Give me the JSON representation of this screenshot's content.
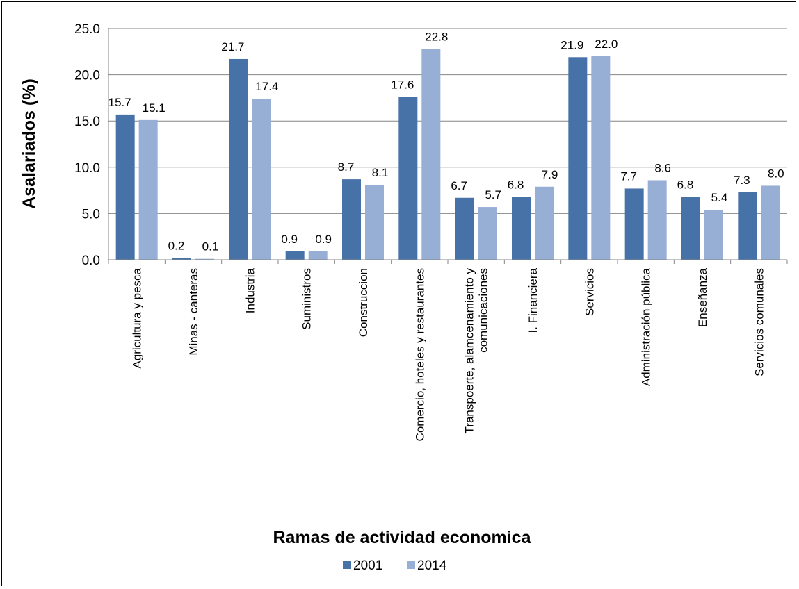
{
  "chart_data": {
    "type": "bar",
    "title": "",
    "xlabel": "Ramas de actividad economica",
    "ylabel": "Asalariados (%)",
    "ylim": [
      0,
      25
    ],
    "yticks": [
      "0.0",
      "5.0",
      "10.0",
      "15.0",
      "20.0",
      "25.0"
    ],
    "grid": true,
    "legend_position": "bottom",
    "categories": [
      [
        "Agricultura y pesca"
      ],
      [
        "Minas - canteras"
      ],
      [
        "Industria"
      ],
      [
        "Suministros"
      ],
      [
        "Construccion"
      ],
      [
        "Comercio, hoteles y restaurantes"
      ],
      [
        "Transpoerte, alamcenamiento y",
        "comunicaciones"
      ],
      [
        "I. Financiera"
      ],
      [
        "Servicios"
      ],
      [
        "Administración pública"
      ],
      [
        "Enseñanza"
      ],
      [
        "Servicios comunales"
      ]
    ],
    "series": [
      {
        "name": "2001",
        "color": "#4672A8",
        "values": [
          15.7,
          0.2,
          21.7,
          0.9,
          8.7,
          17.6,
          6.7,
          6.8,
          21.9,
          7.7,
          6.8,
          7.3
        ],
        "labels": [
          "15.7",
          "0.2",
          "21.7",
          "0.9",
          "8.7",
          "17.6",
          "6.7",
          "6.8",
          "21.9",
          "7.7",
          "6.8",
          "7.3"
        ]
      },
      {
        "name": "2014",
        "color": "#97AED5",
        "values": [
          15.1,
          0.1,
          17.4,
          0.9,
          8.1,
          22.8,
          5.7,
          7.9,
          22.0,
          8.6,
          5.4,
          8.0
        ],
        "labels": [
          "15.1",
          "0.1",
          "17.4",
          "0.9",
          "8.1",
          "22.8",
          "5.7",
          "7.9",
          "22.0",
          "8.6",
          "5.4",
          "8.0"
        ]
      }
    ]
  }
}
